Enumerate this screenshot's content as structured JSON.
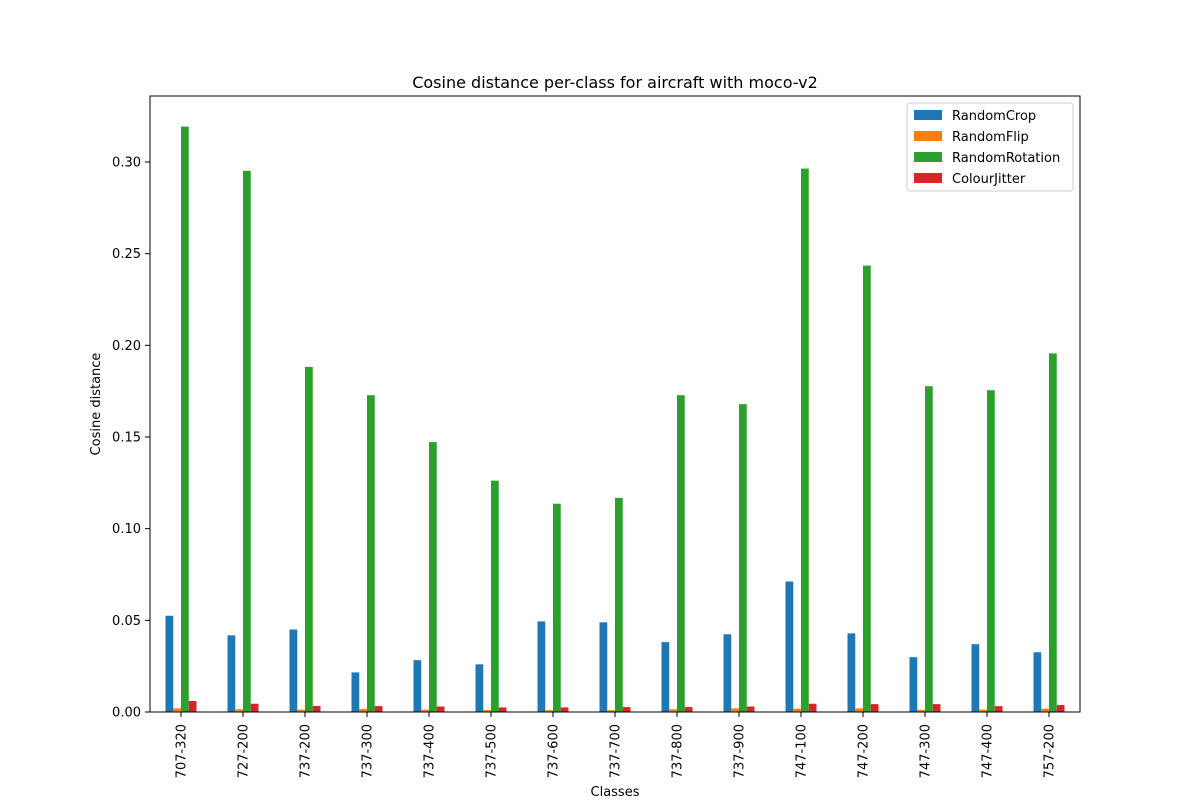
{
  "chart_data": {
    "type": "bar",
    "title": "Cosine distance per-class for aircraft with moco-v2",
    "xlabel": "Classes",
    "ylabel": "Cosine distance",
    "ylim": [
      0,
      0.336
    ],
    "yticks": [
      "0.00",
      "0.05",
      "0.10",
      "0.15",
      "0.20",
      "0.25",
      "0.30"
    ],
    "grid": false,
    "legend_position": "top-right",
    "categories": [
      "707-320",
      "727-200",
      "737-200",
      "737-300",
      "737-400",
      "737-500",
      "737-600",
      "737-700",
      "737-800",
      "737-900",
      "747-100",
      "747-200",
      "747-300",
      "747-400",
      "757-200"
    ],
    "series": [
      {
        "name": "RandomCrop",
        "color": "#1f77b4",
        "values": [
          0.0525,
          0.0418,
          0.045,
          0.0216,
          0.0283,
          0.026,
          0.0494,
          0.0489,
          0.0381,
          0.0424,
          0.0712,
          0.0429,
          0.0299,
          0.037,
          0.0326
        ]
      },
      {
        "name": "RandomFlip",
        "color": "#ff7f0e",
        "values": [
          0.002,
          0.0015,
          0.0013,
          0.0017,
          0.0013,
          0.001,
          0.001,
          0.001,
          0.0015,
          0.002,
          0.0018,
          0.002,
          0.0012,
          0.0013,
          0.0018
        ]
      },
      {
        "name": "RandomRotation",
        "color": "#2ca02c",
        "values": [
          0.3193,
          0.2952,
          0.1882,
          0.1728,
          0.1472,
          0.1262,
          0.1136,
          0.1168,
          0.1728,
          0.1679,
          0.2964,
          0.2435,
          0.1777,
          0.1755,
          0.1956
        ]
      },
      {
        "name": "ColourJitter",
        "color": "#d62728",
        "values": [
          0.006,
          0.0045,
          0.0033,
          0.0032,
          0.003,
          0.0025,
          0.0025,
          0.0027,
          0.0027,
          0.003,
          0.0045,
          0.0043,
          0.0043,
          0.0032,
          0.0038
        ]
      }
    ]
  }
}
